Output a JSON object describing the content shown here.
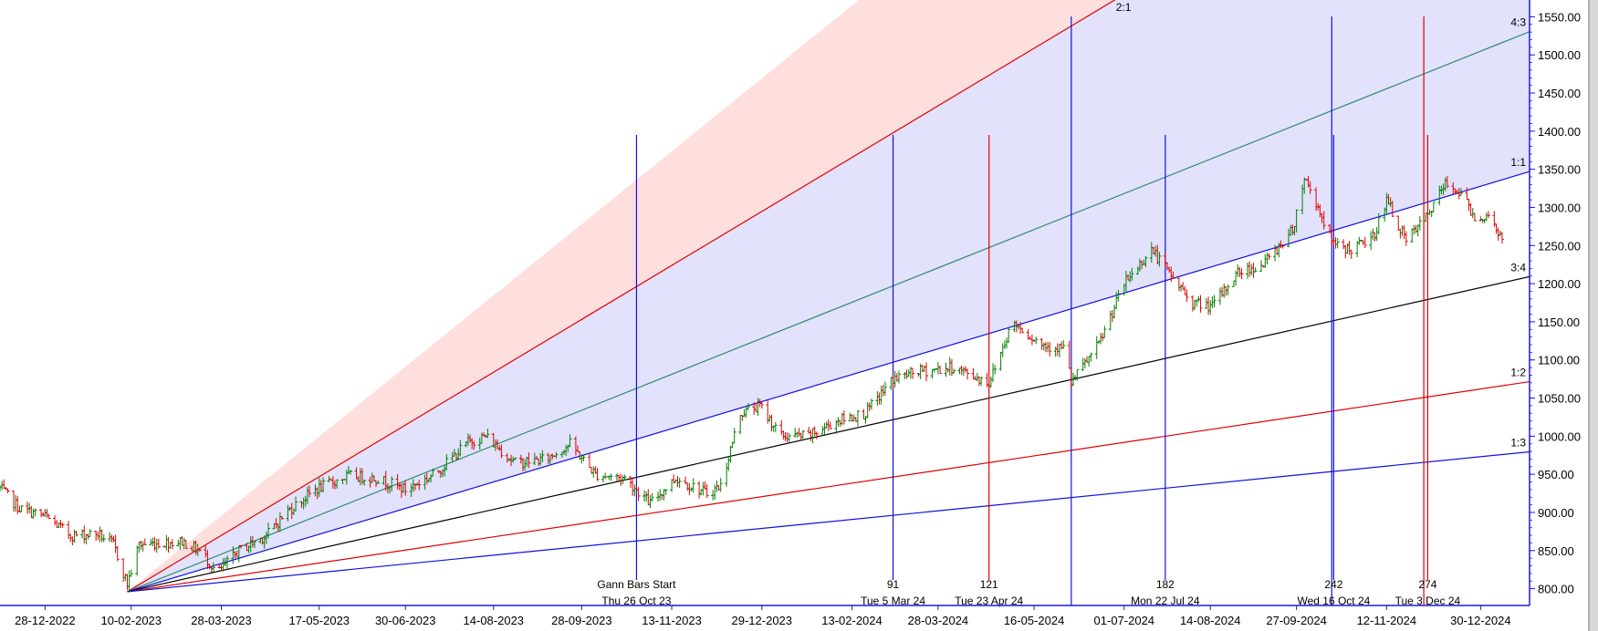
{
  "chart_data": {
    "type": "ohlc",
    "title": "",
    "xlabel": "",
    "ylabel": "",
    "x_ticks": [
      "28-12-2022",
      "10-02-2023",
      "28-03-2023",
      "17-05-2023",
      "30-06-2023",
      "14-08-2023",
      "28-09-2023",
      "13-11-2023",
      "29-12-2023",
      "13-02-2024",
      "28-03-2024",
      "16-05-2024",
      "01-07-2024",
      "14-08-2024",
      "27-09-2024",
      "12-11-2024",
      "30-12-2024"
    ],
    "x_range": [
      "2022-12-05",
      "2025-01-24"
    ],
    "y_ticks": [
      800,
      850,
      900,
      950,
      1000,
      1050,
      1100,
      1150,
      1200,
      1250,
      1300,
      1350,
      1400,
      1450,
      1500,
      1550
    ],
    "y_tick_labels": [
      "800.00",
      "850.00",
      "900.00",
      "950.00",
      "1000.00",
      "1050.00",
      "1100.00",
      "1150.00",
      "1200.00",
      "1250.00",
      "1300.00",
      "1350.00",
      "1400.00",
      "1450.00",
      "1500.00",
      "1550.00"
    ],
    "ylim": [
      778,
      1572
    ],
    "colors": {
      "up": "#008000",
      "down": "#e00000",
      "fan_upper_fill": "#ffdede",
      "fan_lower_fill": "#e2e2fc"
    },
    "price_path": [
      [
        "2022-12-05",
        932
      ],
      [
        "2022-12-15",
        905
      ],
      [
        "2022-12-28",
        895
      ],
      [
        "2023-01-10",
        870
      ],
      [
        "2023-01-24",
        872
      ],
      [
        "2023-02-01",
        858
      ],
      [
        "2023-02-08",
        806
      ],
      [
        "2023-02-14",
        858
      ],
      [
        "2023-02-25",
        860
      ],
      [
        "2023-03-08",
        862
      ],
      [
        "2023-03-18",
        848
      ],
      [
        "2023-03-26",
        820
      ],
      [
        "2023-04-06",
        850
      ],
      [
        "2023-04-20",
        870
      ],
      [
        "2023-05-01",
        902
      ],
      [
        "2023-05-15",
        930
      ],
      [
        "2023-06-01",
        948
      ],
      [
        "2023-06-15",
        945
      ],
      [
        "2023-06-30",
        930
      ],
      [
        "2023-07-15",
        950
      ],
      [
        "2023-08-01",
        992
      ],
      [
        "2023-08-10",
        1000
      ],
      [
        "2023-08-25",
        965
      ],
      [
        "2023-09-10",
        970
      ],
      [
        "2023-09-22",
        990
      ],
      [
        "2023-10-05",
        950
      ],
      [
        "2023-10-20",
        945
      ],
      [
        "2023-10-26",
        930
      ],
      [
        "2023-11-02",
        912
      ],
      [
        "2023-11-15",
        945
      ],
      [
        "2023-12-01",
        925
      ],
      [
        "2023-12-08",
        935
      ],
      [
        "2023-12-18",
        1030
      ],
      [
        "2023-12-28",
        1040
      ],
      [
        "2024-01-08",
        1000
      ],
      [
        "2024-01-22",
        1000
      ],
      [
        "2024-02-05",
        1020
      ],
      [
        "2024-02-20",
        1030
      ],
      [
        "2024-03-05",
        1075
      ],
      [
        "2024-03-18",
        1085
      ],
      [
        "2024-04-05",
        1090
      ],
      [
        "2024-04-23",
        1070
      ],
      [
        "2024-05-05",
        1150
      ],
      [
        "2024-05-20",
        1120
      ],
      [
        "2024-06-01",
        1115
      ],
      [
        "2024-06-04",
        1070
      ],
      [
        "2024-06-18",
        1120
      ],
      [
        "2024-07-01",
        1200
      ],
      [
        "2024-07-15",
        1245
      ],
      [
        "2024-07-25",
        1210
      ],
      [
        "2024-08-05",
        1175
      ],
      [
        "2024-08-15",
        1170
      ],
      [
        "2024-08-28",
        1215
      ],
      [
        "2024-09-10",
        1225
      ],
      [
        "2024-09-25",
        1270
      ],
      [
        "2024-10-01",
        1340
      ],
      [
        "2024-10-08",
        1300
      ],
      [
        "2024-10-16",
        1250
      ],
      [
        "2024-10-25",
        1245
      ],
      [
        "2024-11-05",
        1260
      ],
      [
        "2024-11-12",
        1310
      ],
      [
        "2024-11-22",
        1255
      ],
      [
        "2024-12-03",
        1290
      ],
      [
        "2024-12-12",
        1330
      ],
      [
        "2024-12-20",
        1320
      ],
      [
        "2024-12-26",
        1290
      ],
      [
        "2025-01-05",
        1285
      ],
      [
        "2025-01-12",
        1245
      ]
    ],
    "gann_fan": {
      "anchor": [
        "2023-02-08",
        796
      ],
      "through_1x1": [
        "2025-01-24",
        1347
      ],
      "angles": [
        {
          "label": "2:1",
          "ratio": 2.0,
          "color": "#e00000"
        },
        {
          "label": "4:3",
          "ratio": 1.333,
          "color": "#2e8b6e"
        },
        {
          "label": "1:1",
          "ratio": 1.0,
          "color": "#1010e0"
        },
        {
          "label": "3:4",
          "ratio": 0.75,
          "color": "#000000"
        },
        {
          "label": "1:2",
          "ratio": 0.5,
          "color": "#e00000"
        },
        {
          "label": "1:3",
          "ratio": 0.333,
          "color": "#1010e0"
        }
      ]
    },
    "vertical_markers": [
      {
        "date": "2023-10-26",
        "color": "#1010e0",
        "count": "",
        "label": "Gann Bars Start",
        "date_label": "Thu 26 Oct 23",
        "full": false
      },
      {
        "date": "2024-03-05",
        "color": "#1010e0",
        "count": "91",
        "label": "",
        "date_label": "Tue 5 Mar 24",
        "full": false
      },
      {
        "date": "2024-04-23",
        "color": "#e00000",
        "count": "121",
        "label": "",
        "date_label": "Tue 23 Apr 24",
        "full": false
      },
      {
        "date": "2024-06-04",
        "color": "#1010e0",
        "count": "",
        "label": "",
        "date_label": "",
        "full": true
      },
      {
        "date": "2024-07-22",
        "color": "#1010e0",
        "count": "182",
        "label": "",
        "date_label": "Mon 22 Jul 24",
        "full": false
      },
      {
        "date": "2024-10-15",
        "color": "#1010e0",
        "count": "",
        "label": "",
        "date_label": "",
        "full": true
      },
      {
        "date": "2024-10-16",
        "color": "#1010e0",
        "count": "242",
        "label": "",
        "date_label": "Wed 16 Oct 24",
        "full": false
      },
      {
        "date": "2024-12-01",
        "color": "#e00000",
        "count": "",
        "label": "",
        "date_label": "",
        "full": true
      },
      {
        "date": "2024-12-03",
        "color": "#e00000",
        "count": "274",
        "label": "",
        "date_label": "Tue 3 Dec 24",
        "full": false
      }
    ]
  }
}
